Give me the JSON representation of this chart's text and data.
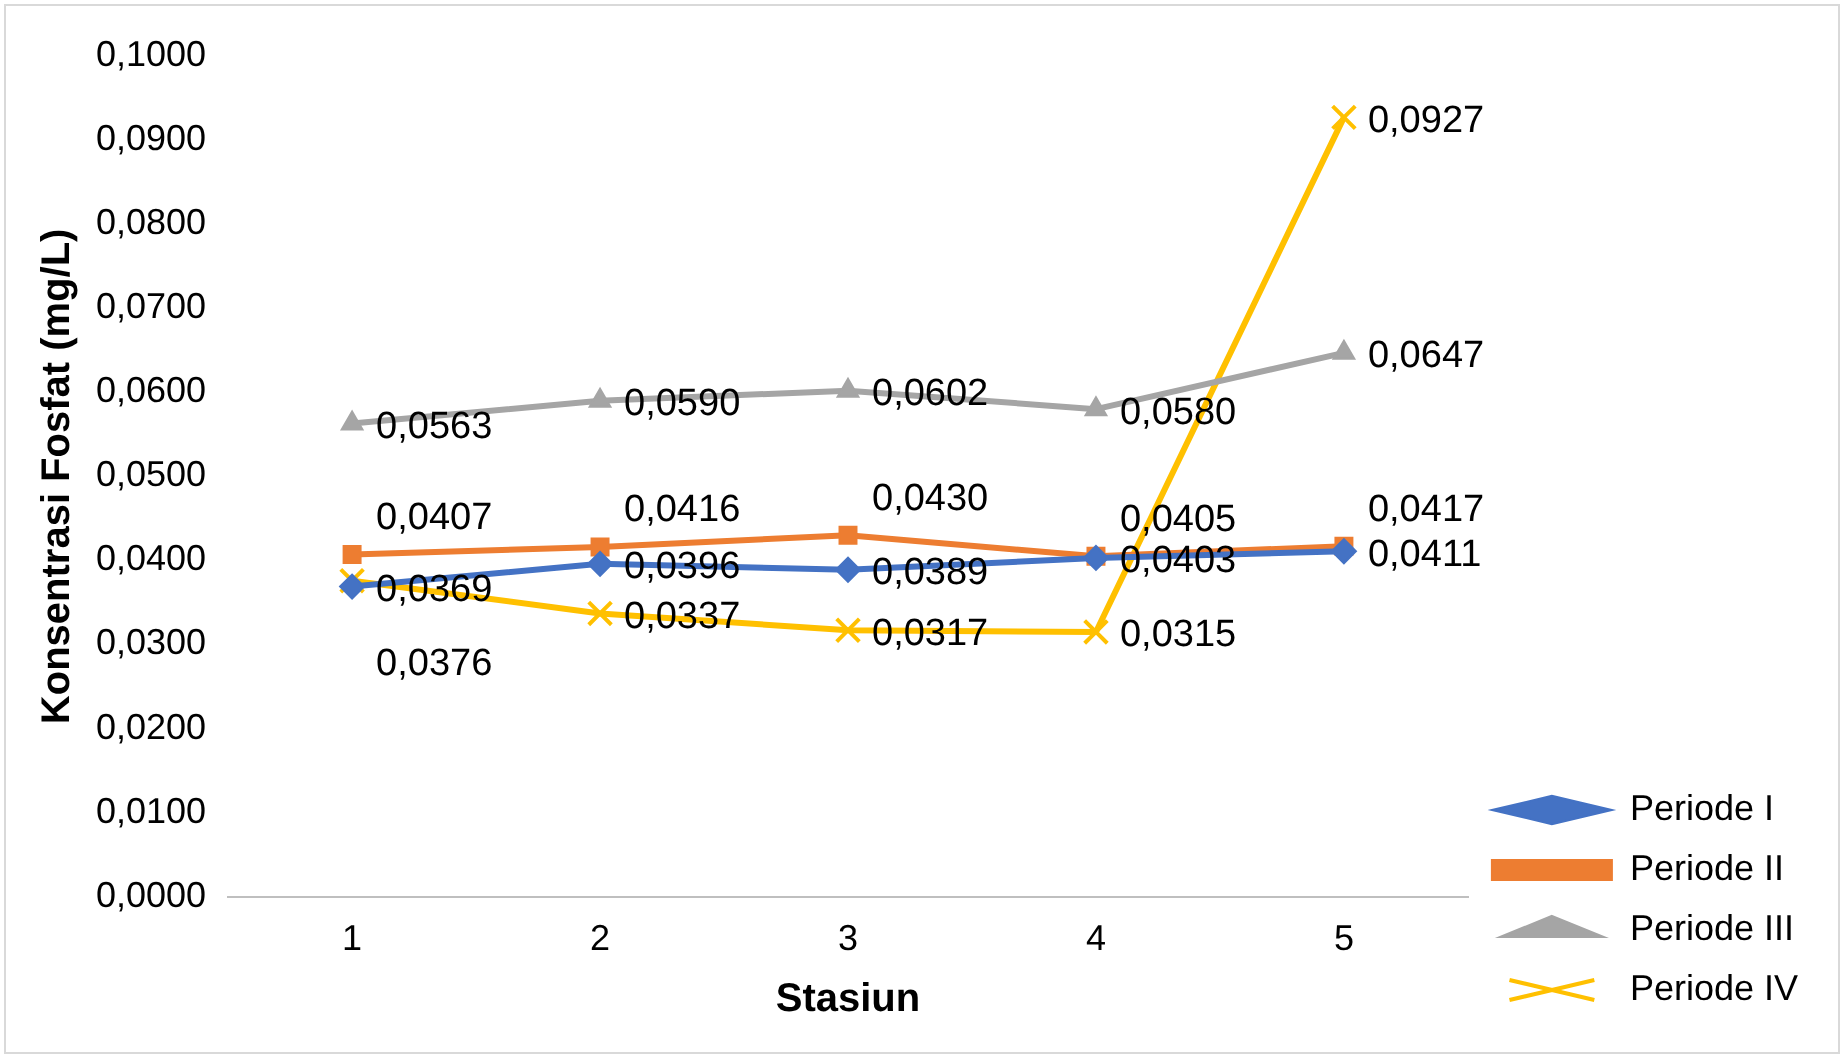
{
  "chart_data": {
    "type": "line",
    "xlabel": "Stasiun",
    "ylabel": "Konsentrasi Fosfat (mg/L)",
    "categories": [
      "1",
      "2",
      "3",
      "4",
      "5"
    ],
    "series": [
      {
        "name": "Periode I",
        "color": "#4472c4",
        "marker": "diamond",
        "values": [
          0.0369,
          0.0396,
          0.0389,
          0.0403,
          0.0411
        ],
        "value_labels": [
          "0,0369",
          "0,0396",
          "0,0389",
          "0,0403",
          "0,0411"
        ]
      },
      {
        "name": "Periode II",
        "color": "#ed7d31",
        "marker": "square",
        "values": [
          0.0407,
          0.0416,
          0.043,
          0.0405,
          0.0417
        ],
        "value_labels": [
          "0,0407",
          "0,0416",
          "0,0430",
          "0,0405",
          "0,0417"
        ]
      },
      {
        "name": "Periode III",
        "color": "#a5a5a5",
        "marker": "triangle",
        "values": [
          0.0563,
          0.059,
          0.0602,
          0.058,
          0.0647
        ],
        "value_labels": [
          "0,0563",
          "0,0590",
          "0,0602",
          "0,0580",
          "0,0647"
        ]
      },
      {
        "name": "Periode IV",
        "color": "#ffc000",
        "marker": "cross",
        "values": [
          0.0376,
          0.0337,
          0.0317,
          0.0315,
          0.0927
        ],
        "value_labels": [
          "0,0376",
          "0,0337",
          "0,0317",
          "0,0315",
          "0,0927"
        ]
      }
    ],
    "ylim": [
      0,
      0.1
    ],
    "yticks": [
      {
        "value": 0,
        "label": "0,0000"
      },
      {
        "value": 0.01,
        "label": "0,0100"
      },
      {
        "value": 0.02,
        "label": "0,0200"
      },
      {
        "value": 0.03,
        "label": "0,0300"
      },
      {
        "value": 0.04,
        "label": "0,0400"
      },
      {
        "value": 0.05,
        "label": "0,0500"
      },
      {
        "value": 0.06,
        "label": "0,0600"
      },
      {
        "value": 0.07,
        "label": "0,0700"
      },
      {
        "value": 0.08,
        "label": "0,0800"
      },
      {
        "value": 0.09,
        "label": "0,0900"
      },
      {
        "value": 0.1,
        "label": "0,1000"
      }
    ],
    "grid": false,
    "legend": "right",
    "line_style": "solid"
  }
}
